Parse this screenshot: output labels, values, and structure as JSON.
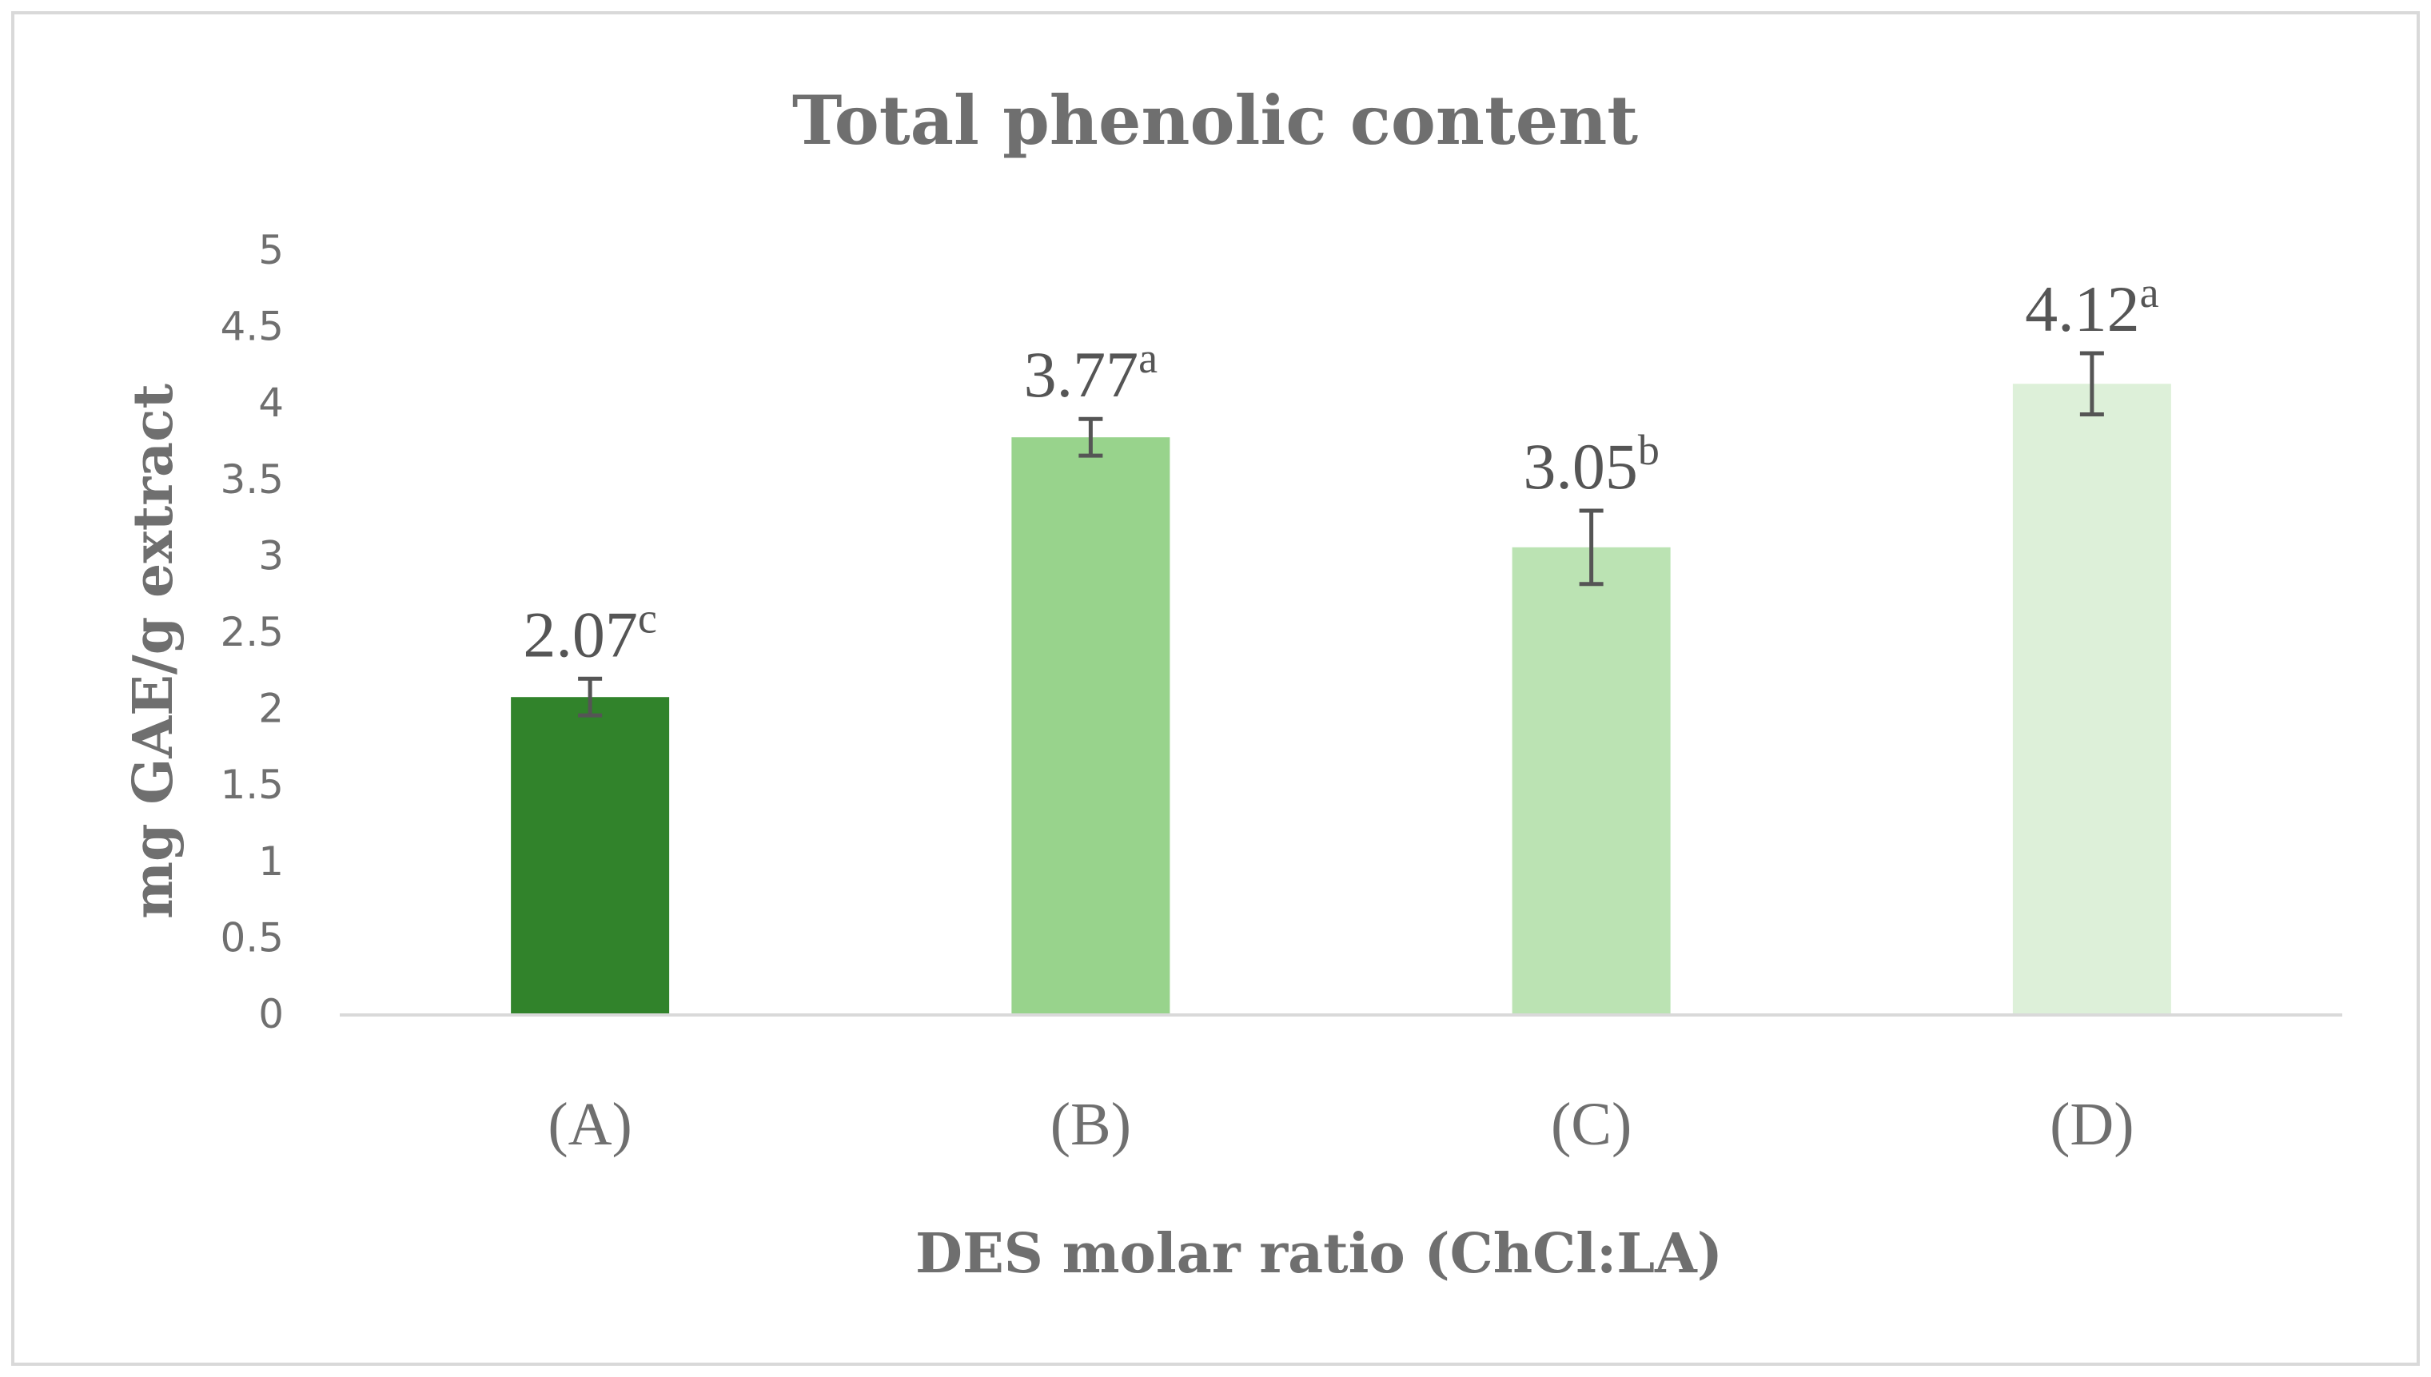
{
  "chart_data": {
    "type": "bar",
    "title": "Total phenolic content",
    "xlabel": "DES molar ratio (ChCl:LA)",
    "ylabel": "mg GAE/g extract",
    "ylim": [
      0,
      5
    ],
    "yticks": [
      "0",
      "0.5",
      "1",
      "1.5",
      "2",
      "2.5",
      "3",
      "3.5",
      "4",
      "4.5",
      "5"
    ],
    "ytick_values": [
      0,
      0.5,
      1,
      1.5,
      2,
      2.5,
      3,
      3.5,
      4,
      4.5,
      5
    ],
    "grid": false,
    "categories": [
      "(A)",
      "(B)",
      "(C)",
      "(D)"
    ],
    "values": [
      2.07,
      3.77,
      3.05,
      4.12
    ],
    "errors": [
      0.12,
      0.12,
      0.24,
      0.2
    ],
    "labels": [
      "2.07",
      "3.77",
      "3.05",
      "4.12"
    ],
    "significance": [
      "c",
      "a",
      "b",
      "a"
    ],
    "colors": [
      "#31832b",
      "#98d38c",
      "#bbe3b3",
      "#ddf0d9"
    ]
  },
  "style": {
    "frame_color": "#d9d9d9",
    "axis_color": "#d9d9d9",
    "error_color": "#555555"
  }
}
